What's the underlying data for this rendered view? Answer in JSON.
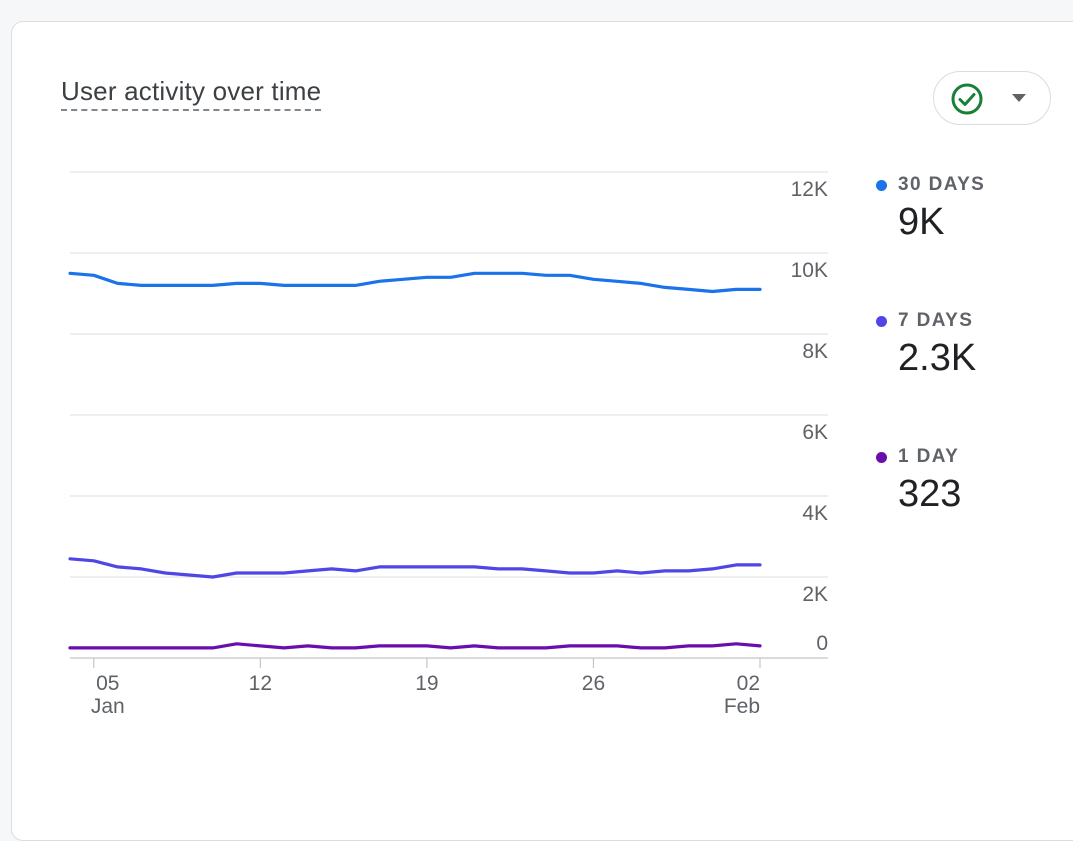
{
  "card": {
    "title": "User activity over time"
  },
  "status_button": {
    "icon": "check-circle-icon",
    "dropdown_icon": "caret-down-icon",
    "check_color": "#188038"
  },
  "legend": [
    {
      "label": "30 DAYS",
      "value": "9K",
      "color": "#1a73e8"
    },
    {
      "label": "7 DAYS",
      "value": "2.3K",
      "color": "#4f46e5"
    },
    {
      "label": "1 DAY",
      "value": "323",
      "color": "#6a0dad"
    }
  ],
  "chart_data": {
    "type": "line",
    "y_ticks": [
      {
        "value": 0,
        "label": "0"
      },
      {
        "value": 2000,
        "label": "2K"
      },
      {
        "value": 4000,
        "label": "4K"
      },
      {
        "value": 6000,
        "label": "6K"
      },
      {
        "value": 8000,
        "label": "8K"
      },
      {
        "value": 10000,
        "label": "10K"
      },
      {
        "value": 12000,
        "label": "12K"
      }
    ],
    "ylim": [
      0,
      12000
    ],
    "y_axis_position": "right",
    "grid": true,
    "x_ticks": [
      {
        "day": 5,
        "label": "05",
        "sublabel": "Jan"
      },
      {
        "day": 12,
        "label": "12",
        "sublabel": ""
      },
      {
        "day": 19,
        "label": "19",
        "sublabel": ""
      },
      {
        "day": 26,
        "label": "26",
        "sublabel": ""
      },
      {
        "day": 33,
        "label": "02",
        "sublabel": "Feb"
      }
    ],
    "x": [
      "Jan 04",
      "Jan 05",
      "Jan 06",
      "Jan 07",
      "Jan 08",
      "Jan 09",
      "Jan 10",
      "Jan 11",
      "Jan 12",
      "Jan 13",
      "Jan 14",
      "Jan 15",
      "Jan 16",
      "Jan 17",
      "Jan 18",
      "Jan 19",
      "Jan 20",
      "Jan 21",
      "Jan 22",
      "Jan 23",
      "Jan 24",
      "Jan 25",
      "Jan 26",
      "Jan 27",
      "Jan 28",
      "Jan 29",
      "Jan 30",
      "Jan 31",
      "Feb 01",
      "Feb 02"
    ],
    "series": [
      {
        "name": "30 DAYS",
        "color": "#1a73e8",
        "values": [
          9500,
          9450,
          9250,
          9200,
          9200,
          9200,
          9200,
          9250,
          9250,
          9200,
          9200,
          9200,
          9200,
          9300,
          9350,
          9400,
          9400,
          9500,
          9500,
          9500,
          9450,
          9450,
          9350,
          9300,
          9250,
          9150,
          9100,
          9050,
          9100,
          9100
        ]
      },
      {
        "name": "7 DAYS",
        "color": "#4f46e5",
        "values": [
          2450,
          2400,
          2250,
          2200,
          2100,
          2050,
          2000,
          2100,
          2100,
          2100,
          2150,
          2200,
          2150,
          2250,
          2250,
          2250,
          2250,
          2250,
          2200,
          2200,
          2150,
          2100,
          2100,
          2150,
          2100,
          2150,
          2150,
          2200,
          2300,
          2300
        ]
      },
      {
        "name": "1 DAY",
        "color": "#6a0dad",
        "values": [
          250,
          250,
          250,
          250,
          250,
          250,
          250,
          350,
          300,
          250,
          300,
          250,
          250,
          300,
          300,
          300,
          250,
          300,
          250,
          250,
          250,
          300,
          300,
          300,
          250,
          250,
          300,
          300,
          350,
          300
        ]
      }
    ]
  }
}
